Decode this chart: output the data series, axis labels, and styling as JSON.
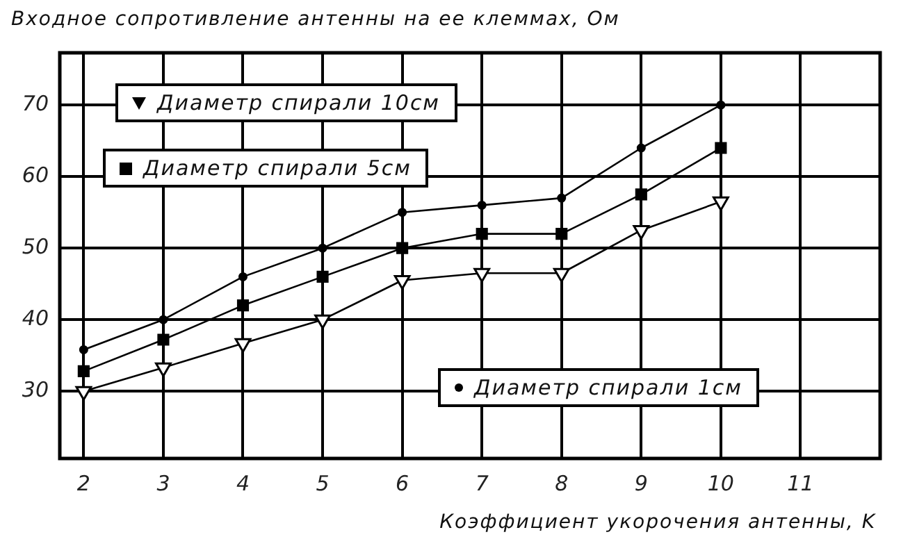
{
  "chart_data": {
    "type": "line",
    "ylabel": "Входное сопротивление антенны на ее клеммах, Ом",
    "xlabel": "Коэффициент укорочения антенны, K",
    "x": [
      2,
      3,
      4,
      5,
      6,
      7,
      8,
      9,
      10
    ],
    "series": [
      {
        "name": "Диаметр спирали 10см",
        "color": "#000000",
        "marker": "triangle",
        "values": [
          30,
          33.3,
          36.7,
          40,
          45.5,
          46.5,
          46.5,
          52.5,
          56.5
        ]
      },
      {
        "name": "Диаметр спирали 5см",
        "color": "#000000",
        "marker": "square",
        "values": [
          32.8,
          37.2,
          42,
          46,
          50,
          52,
          52,
          57.5,
          64
        ]
      },
      {
        "name": "Диаметр спирали 1см",
        "color": "#000000",
        "marker": "circle",
        "values": [
          35.8,
          40,
          46,
          50,
          55,
          56,
          57,
          64,
          70
        ]
      }
    ],
    "xlim": [
      1.7,
      12
    ],
    "xticks": [
      2,
      3,
      4,
      5,
      6,
      7,
      8,
      9,
      10,
      11
    ],
    "ylim": [
      20.6,
      77.3
    ],
    "yticks": [
      30,
      40,
      50,
      60,
      70
    ],
    "grid": true,
    "legend": "top left",
    "line_style": "solid"
  }
}
